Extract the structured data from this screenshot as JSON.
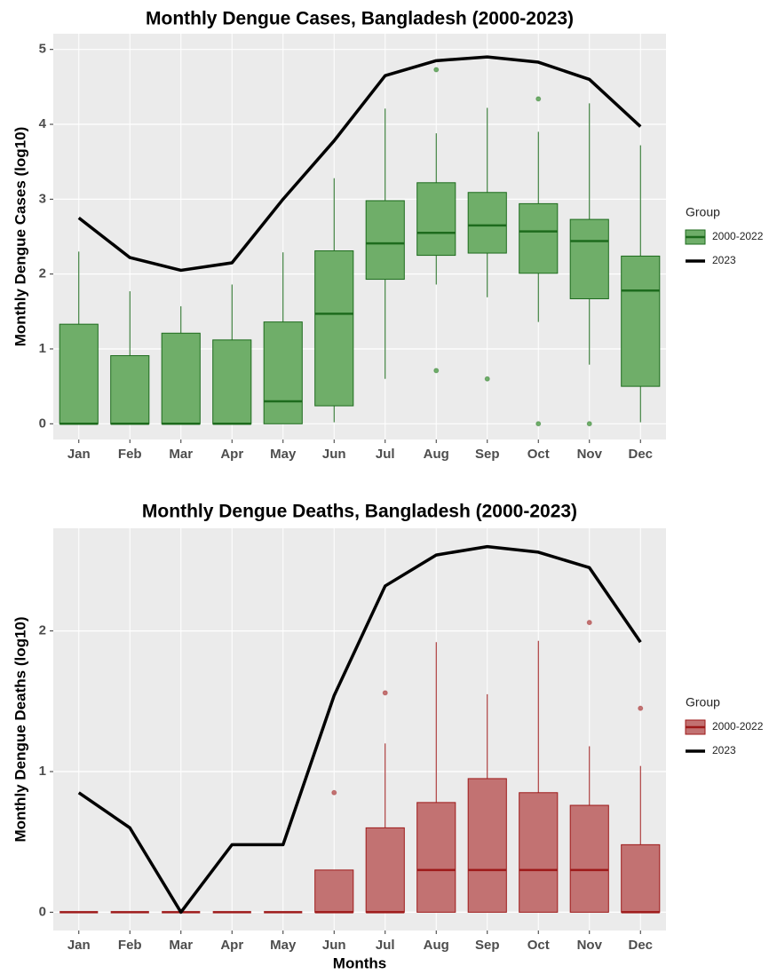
{
  "chart_data": [
    {
      "type": "box",
      "title": "Monthly Dengue Cases, Bangladesh (2000-2023)",
      "ylabel": "Monthly Dengue Cases (log10)",
      "categories": [
        "Jan",
        "Feb",
        "Mar",
        "Apr",
        "May",
        "Jun",
        "Jul",
        "Aug",
        "Sep",
        "Oct",
        "Nov",
        "Dec"
      ],
      "ylim": [
        -0.21,
        5.21
      ],
      "yticks": [
        0,
        1,
        2,
        3,
        4,
        5
      ],
      "grid": true,
      "legend_title": "Group",
      "series": [
        {
          "name": "2000-2022",
          "type": "box",
          "color": "#6fae69",
          "line_color": "#1d6b1d",
          "min": [
            0,
            0,
            0,
            0,
            0,
            0.02,
            0.6,
            1.86,
            1.69,
            1.36,
            0.79,
            0.02
          ],
          "q1": [
            0,
            0,
            0,
            0,
            0,
            0.24,
            1.93,
            2.25,
            2.28,
            2.01,
            1.67,
            0.5
          ],
          "median": [
            0,
            0,
            0,
            0,
            0.3,
            1.47,
            2.41,
            2.55,
            2.65,
            2.57,
            2.44,
            1.78
          ],
          "q3": [
            1.33,
            0.91,
            1.21,
            1.12,
            1.36,
            2.31,
            2.98,
            3.22,
            3.09,
            2.94,
            2.73,
            2.24
          ],
          "max": [
            2.3,
            1.77,
            1.57,
            1.86,
            2.29,
            3.28,
            4.21,
            3.88,
            4.22,
            3.9,
            4.28,
            3.72
          ],
          "outliers": [
            [],
            [],
            [],
            [],
            [],
            [],
            [],
            [
              4.73,
              0.71
            ],
            [
              0.6
            ],
            [
              4.34,
              0
            ],
            [
              0
            ],
            []
          ]
        },
        {
          "name": "2023",
          "type": "line",
          "color": "#000000",
          "values": [
            2.75,
            2.22,
            2.05,
            2.15,
            3.0,
            3.78,
            4.65,
            4.85,
            4.9,
            4.83,
            4.6,
            3.97
          ]
        }
      ]
    },
    {
      "type": "box",
      "title": "Monthly Dengue Deaths, Bangladesh (2000-2023)",
      "ylabel": "Monthly Dengue Deaths (log10)",
      "xlabel": "Months",
      "categories": [
        "Jan",
        "Feb",
        "Mar",
        "Apr",
        "May",
        "Jun",
        "Jul",
        "Aug",
        "Sep",
        "Oct",
        "Nov",
        "Dec"
      ],
      "ylim": [
        -0.13,
        2.73
      ],
      "yticks": [
        0,
        1,
        2
      ],
      "grid": true,
      "legend_title": "Group",
      "series": [
        {
          "name": "2000-2022",
          "type": "box",
          "color": "#c27272",
          "line_color": "#9e1a1a",
          "min": [
            0,
            0,
            0,
            0,
            0,
            0,
            0,
            0,
            0,
            0,
            0,
            0
          ],
          "q1": [
            0,
            0,
            0,
            0,
            0,
            0,
            0,
            0,
            0,
            0,
            0,
            0
          ],
          "median": [
            0,
            0,
            0,
            0,
            0,
            0,
            0,
            0.3,
            0.3,
            0.3,
            0.3,
            0
          ],
          "q3": [
            0,
            0,
            0,
            0,
            0,
            0.3,
            0.6,
            0.78,
            0.95,
            0.85,
            0.76,
            0.48
          ],
          "max": [
            0,
            0,
            0,
            0,
            0,
            0,
            1.2,
            1.92,
            1.55,
            1.93,
            1.18,
            1.04
          ],
          "outliers": [
            [],
            [],
            [],
            [],
            [],
            [
              0.85
            ],
            [
              1.56
            ],
            [],
            [],
            [],
            [
              2.06
            ],
            [
              1.45
            ]
          ]
        },
        {
          "name": "2023",
          "type": "line",
          "color": "#000000",
          "values": [
            0.85,
            0.6,
            0,
            0.48,
            0.48,
            1.54,
            2.32,
            2.54,
            2.6,
            2.56,
            2.45,
            1.92
          ]
        }
      ]
    }
  ]
}
